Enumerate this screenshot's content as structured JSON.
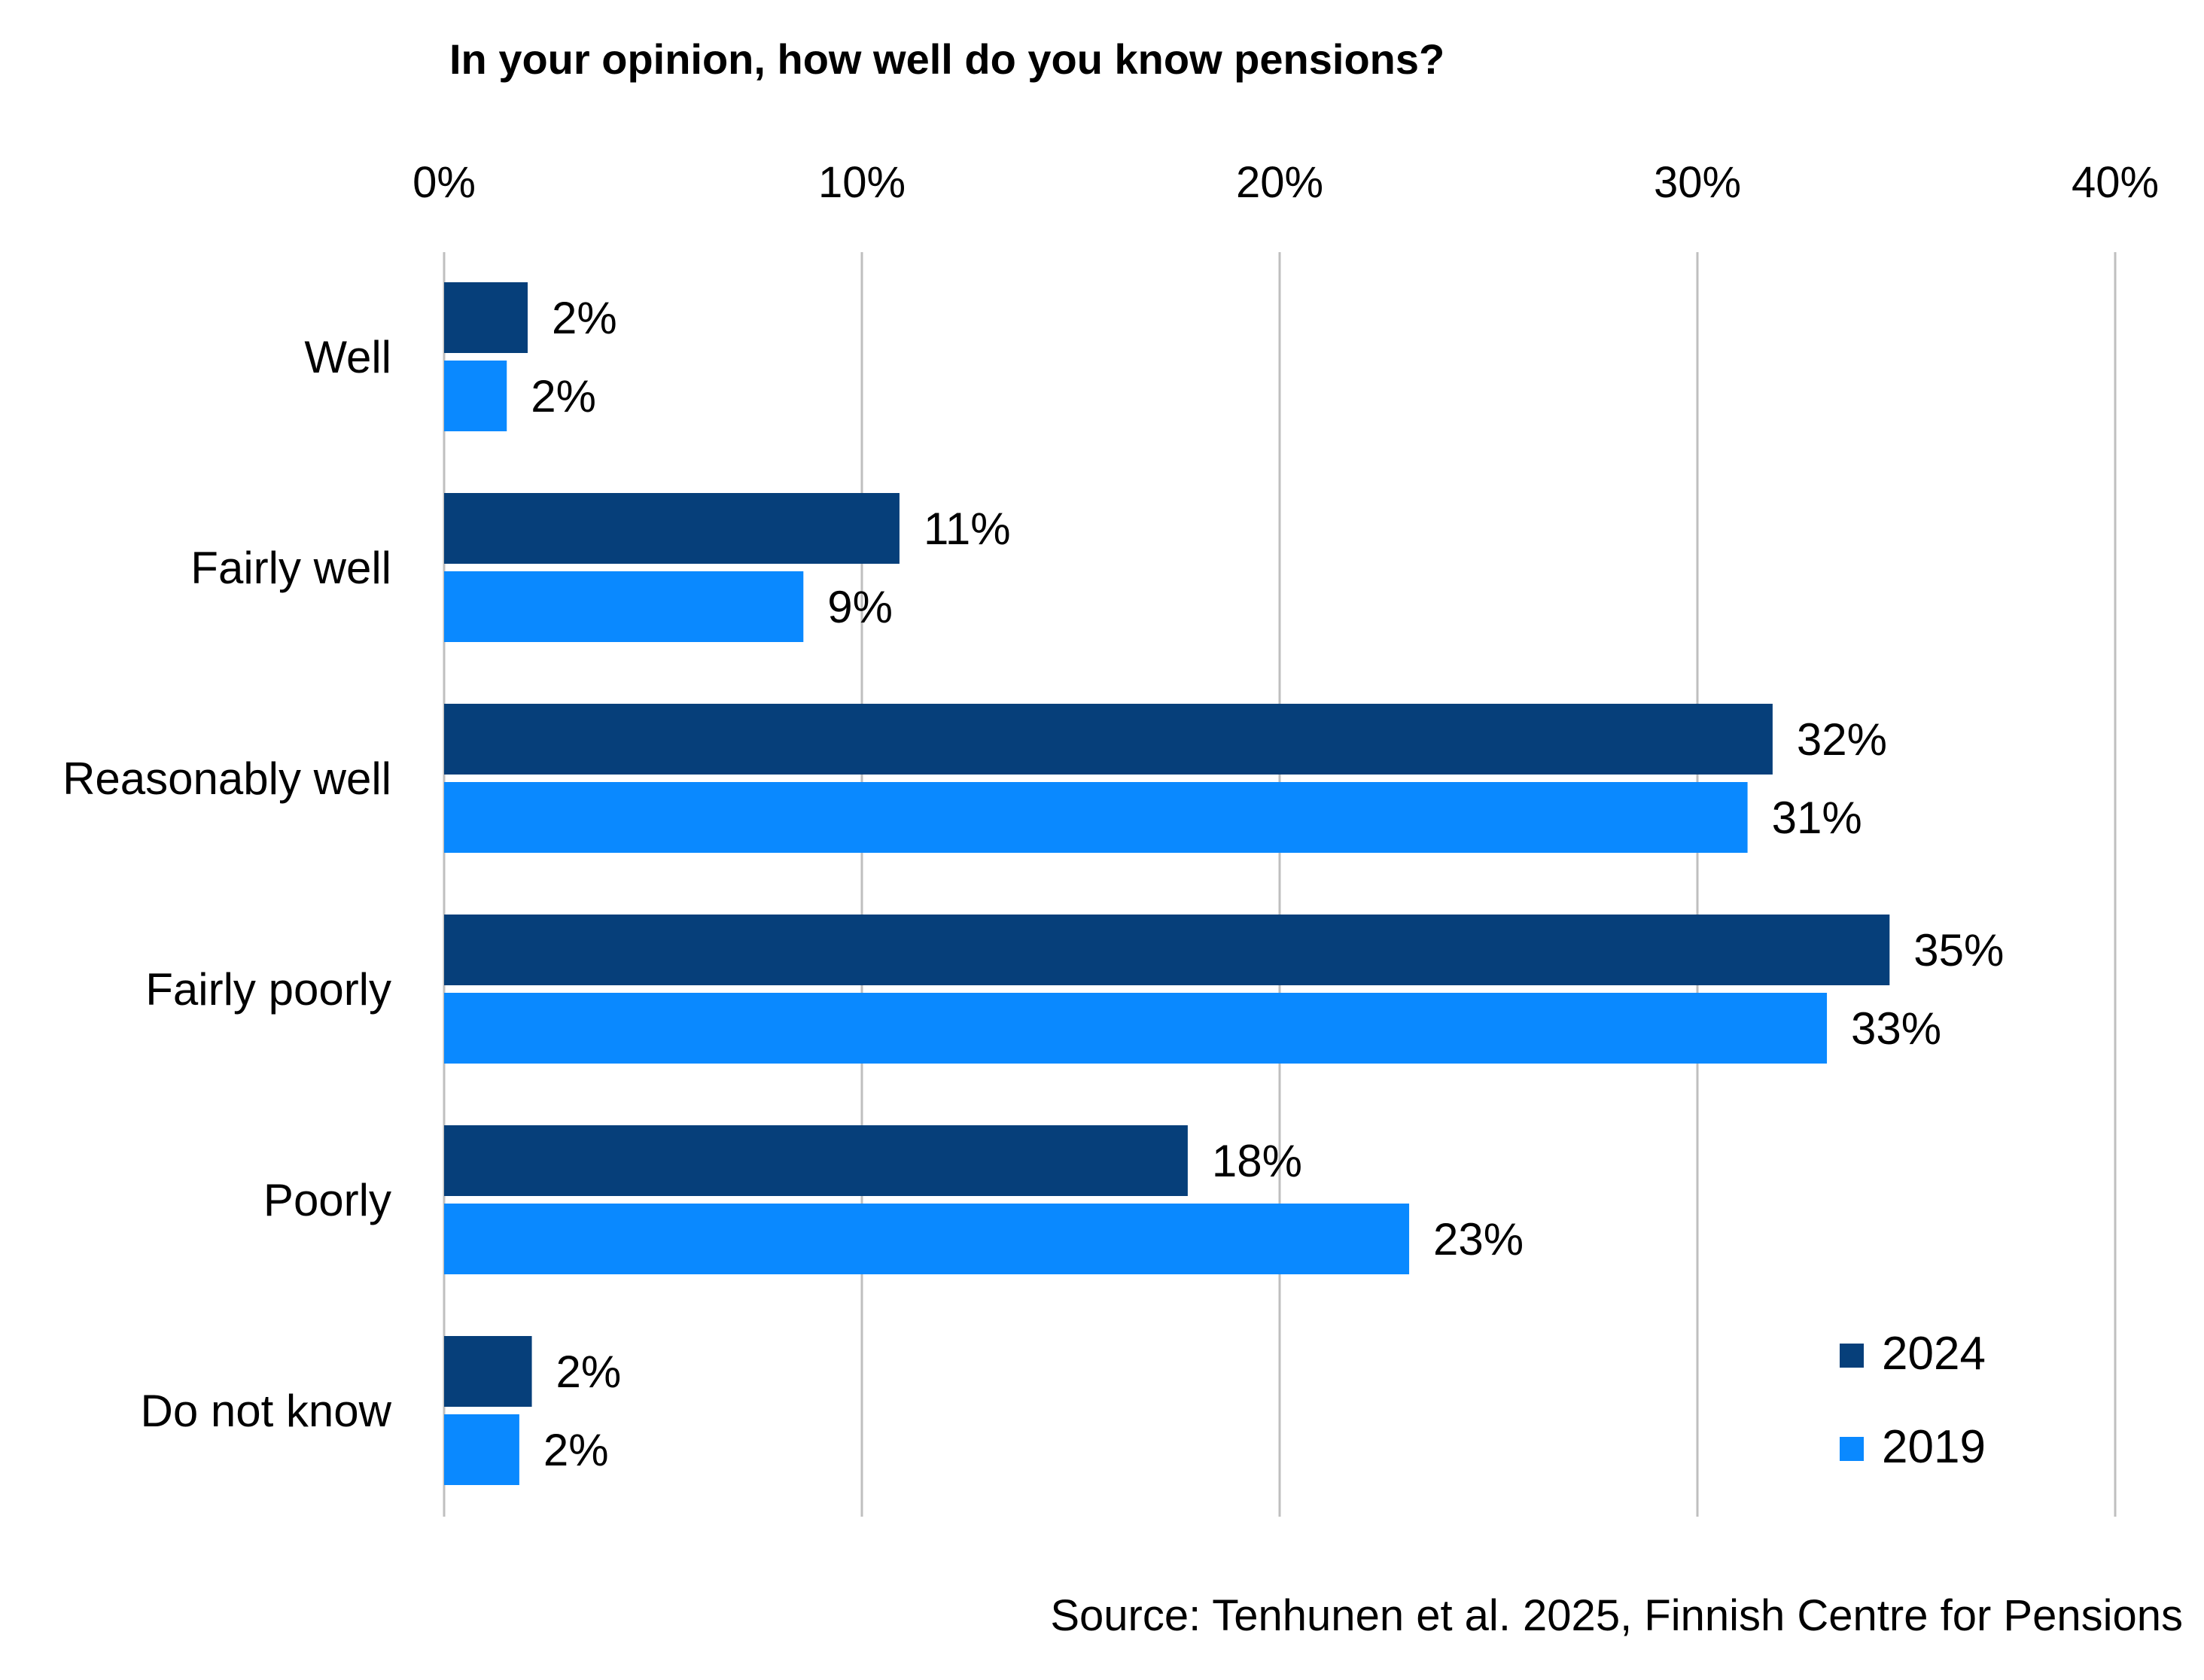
{
  "chart_data": {
    "type": "bar",
    "orientation": "horizontal",
    "title": "In your opinion, how well do you know pensions?",
    "source": "Source: Tenhunen et al. 2025, Finnish Centre for Pensions",
    "categories": [
      "Well",
      "Fairly well",
      "Reasonably well",
      "Fairly poorly",
      "Poorly",
      "Do not know"
    ],
    "series": [
      {
        "name": "2024",
        "color": "#063F7A",
        "values": [
          2.0,
          10.9,
          31.8,
          34.6,
          17.8,
          2.1
        ],
        "labels": [
          "2%",
          "11%",
          "32%",
          "35%",
          "18%",
          "2%"
        ]
      },
      {
        "name": "2019",
        "color": "#0A89FF",
        "values": [
          1.5,
          8.6,
          31.2,
          33.1,
          23.1,
          1.8
        ],
        "labels": [
          "2%",
          "9%",
          "31%",
          "33%",
          "23%",
          "2%"
        ]
      }
    ],
    "xlim": [
      0,
      40
    ],
    "xticks": [
      0,
      10,
      20,
      30,
      40
    ],
    "xtick_labels": [
      "0%",
      "10%",
      "20%",
      "30%",
      "40%"
    ],
    "xaxis_position": "top",
    "grid": true,
    "grid_color": "#BFBFBF",
    "legend": "bottom-right"
  }
}
